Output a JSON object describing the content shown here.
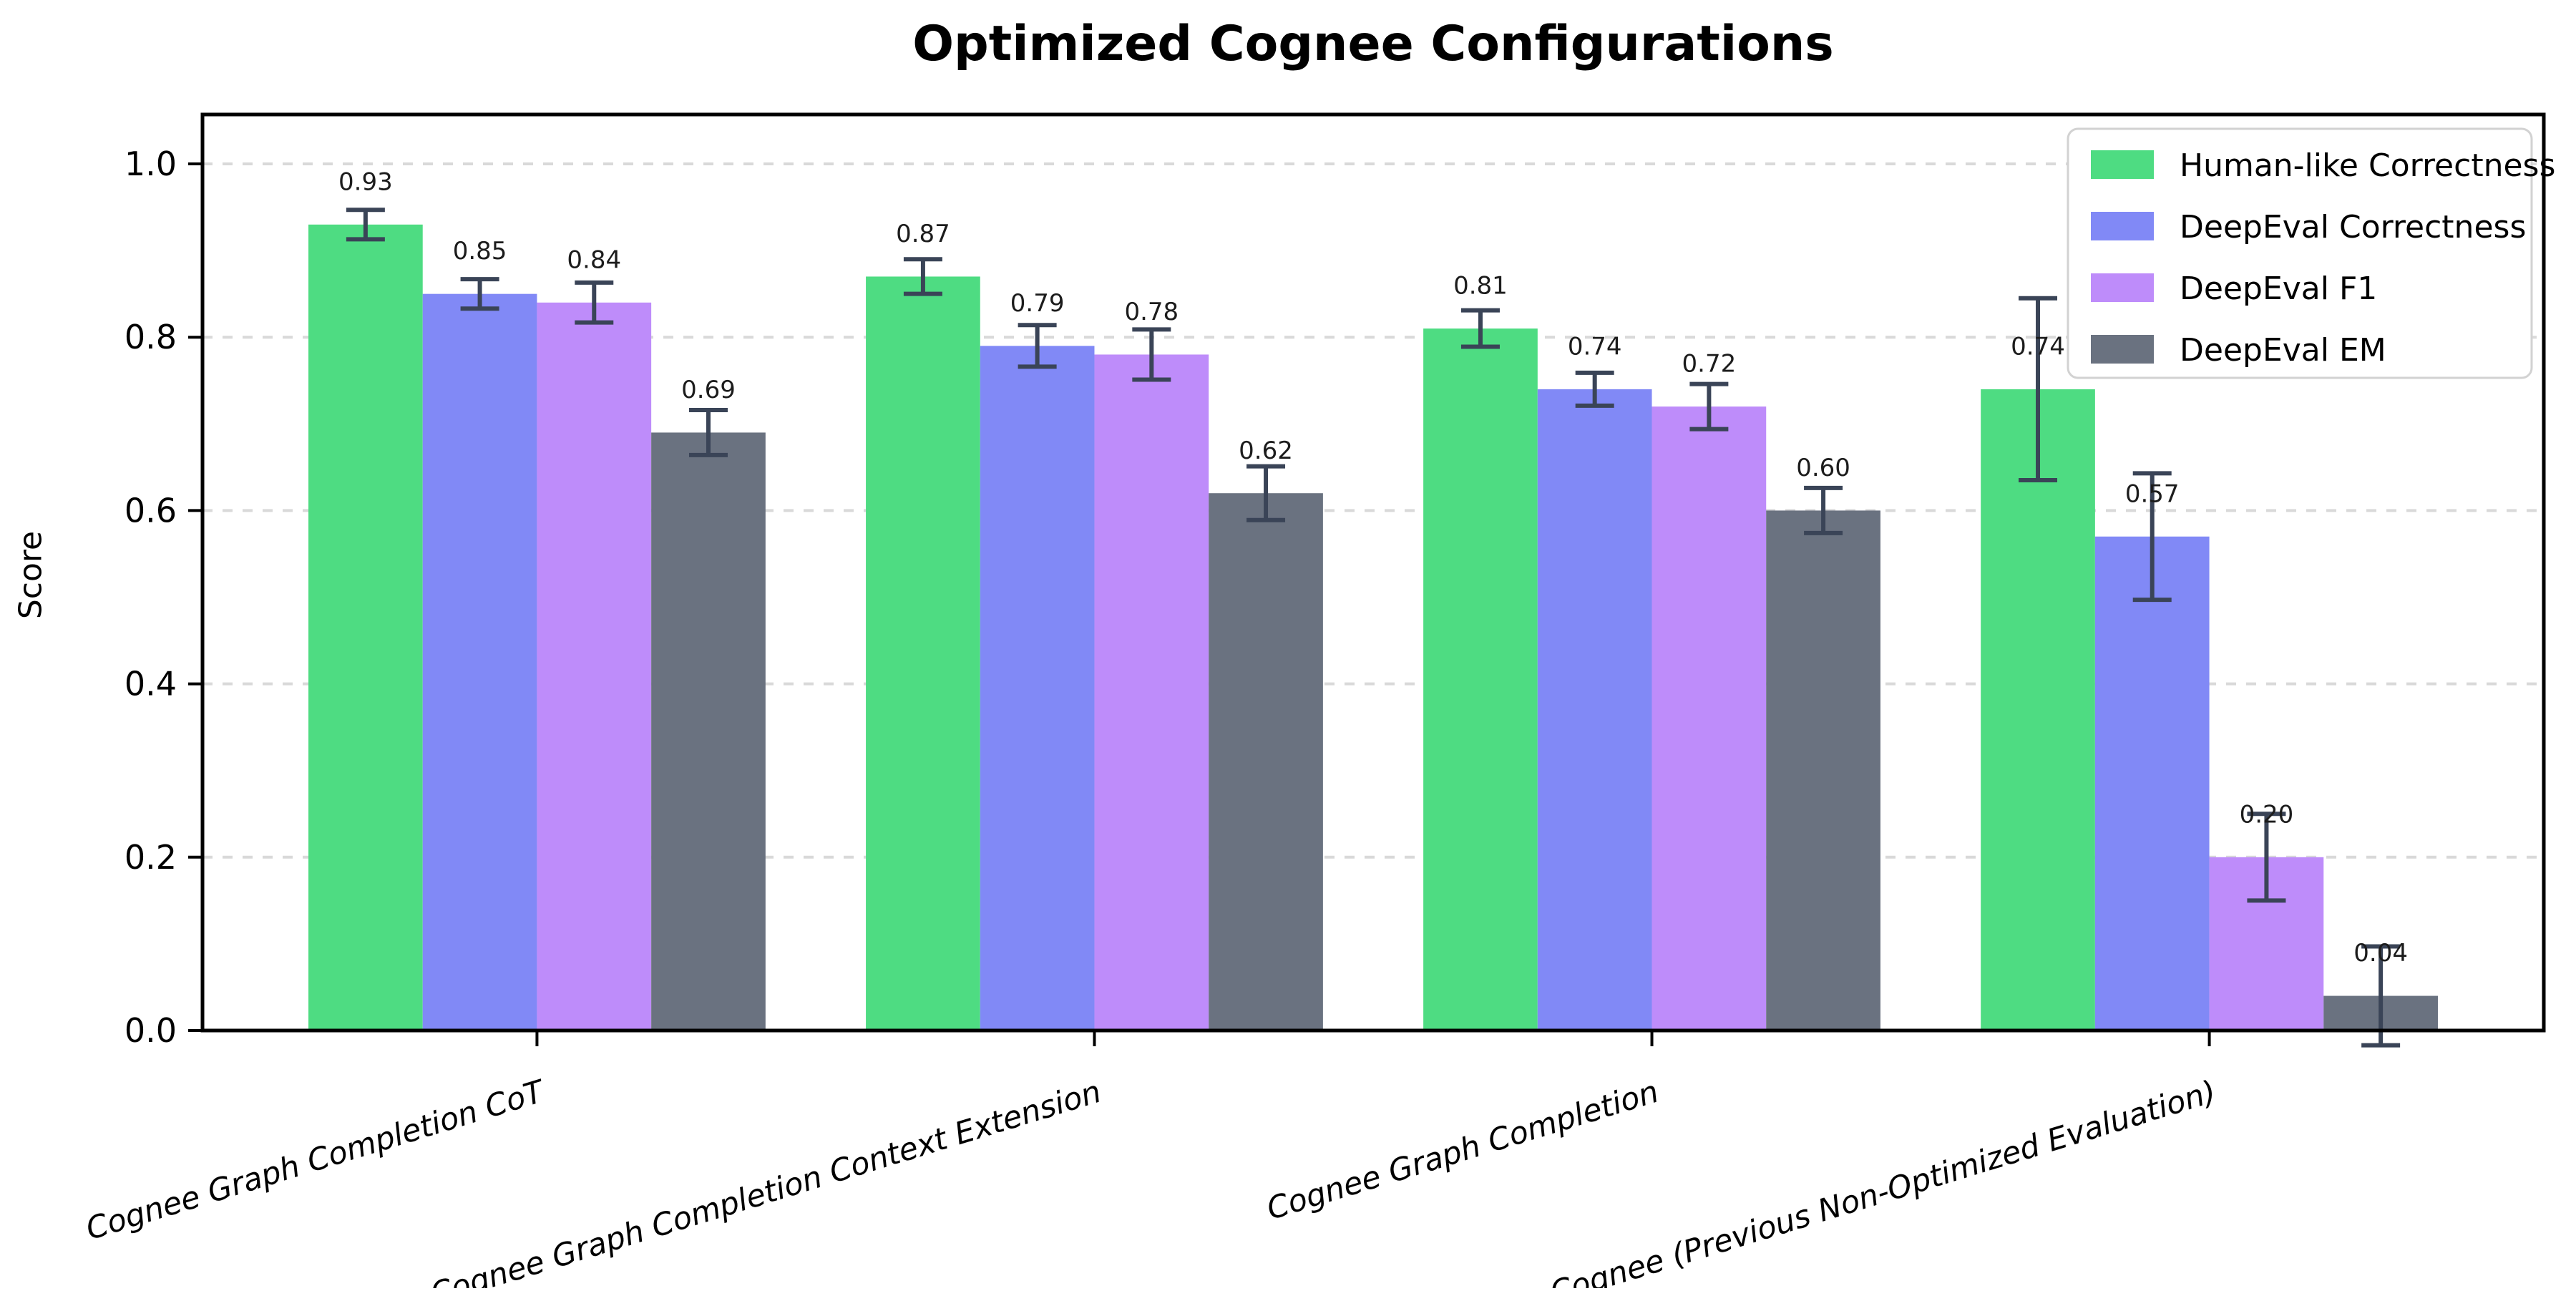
{
  "chart_data": {
    "type": "bar",
    "title": "Optimized Cognee Configurations",
    "xlabel": "",
    "ylabel": "Score",
    "ylim": [
      0,
      1.057
    ],
    "yticks": [
      0.0,
      0.2,
      0.4,
      0.6,
      0.8,
      1.0
    ],
    "grid": "horizontal dashed, behind bars",
    "legend_position": "upper right",
    "categories": [
      "Cognee Graph Completion CoT",
      "Cognee Graph Completion Context Extension",
      "Cognee Graph Completion",
      "Cognee (Previous Non-Optimized Evaluation)"
    ],
    "series": [
      {
        "name": "Human-like Correctness",
        "color": "#4edc82",
        "values": [
          0.93,
          0.87,
          0.81,
          0.74
        ],
        "errors": [
          0.017,
          0.02,
          0.021,
          0.105
        ]
      },
      {
        "name": "DeepEval Correctness",
        "color": "#8189f6",
        "values": [
          0.85,
          0.79,
          0.74,
          0.57
        ],
        "errors": [
          0.017,
          0.024,
          0.019,
          0.073
        ]
      },
      {
        "name": "DeepEval F1",
        "color": "#be8cfa",
        "values": [
          0.84,
          0.78,
          0.72,
          0.2
        ],
        "errors": [
          0.023,
          0.029,
          0.026,
          0.05
        ]
      },
      {
        "name": "DeepEval EM",
        "color": "#6a7280",
        "values": [
          0.69,
          0.62,
          0.6,
          0.04
        ],
        "errors": [
          0.026,
          0.031,
          0.026,
          0.057
        ]
      }
    ],
    "bar_value_labels": [
      "0.93",
      "0.85",
      "0.84",
      "0.69",
      "0.87",
      "0.79",
      "0.78",
      "0.62",
      "0.81",
      "0.74",
      "0.72",
      "0.60",
      "0.74",
      "0.57",
      "0.20",
      "0.04"
    ]
  },
  "colors": {
    "error_bar": "#3a4457",
    "grid": "#d9d9d9",
    "axis": "#000000",
    "tick_label": "#000000",
    "value_label": "#1c1c1c",
    "legend_border": "#d2d2d2",
    "legend_bg": "#ffffff"
  }
}
